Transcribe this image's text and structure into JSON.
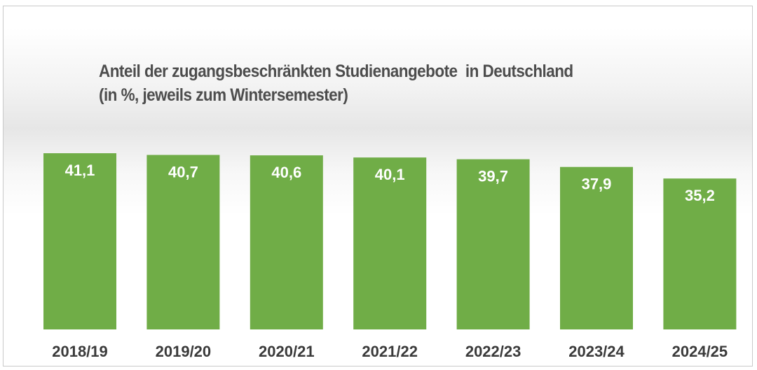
{
  "colors": {
    "bar": "#70ad47",
    "bar_label": "#ffffff",
    "tick_label": "#3a3a3a",
    "title": "#4d4d4d"
  },
  "chart_data": {
    "type": "bar",
    "title": "Anteil der zugangsbeschränkten Studienangebote  in Deutschland",
    "subtitle": "(in %, jeweils zum Wintersemester)",
    "categories": [
      "2018/19",
      "2019/20",
      "2020/21",
      "2021/22",
      "2022/23",
      "2023/24",
      "2024/25"
    ],
    "values": [
      41.1,
      40.7,
      40.6,
      40.1,
      39.7,
      37.9,
      35.2
    ],
    "value_labels": [
      "41,1",
      "40,7",
      "40,6",
      "40,1",
      "39,7",
      "37,9",
      "35,2"
    ],
    "xlabel": "",
    "ylabel": "",
    "grid": false,
    "legend": "none"
  }
}
